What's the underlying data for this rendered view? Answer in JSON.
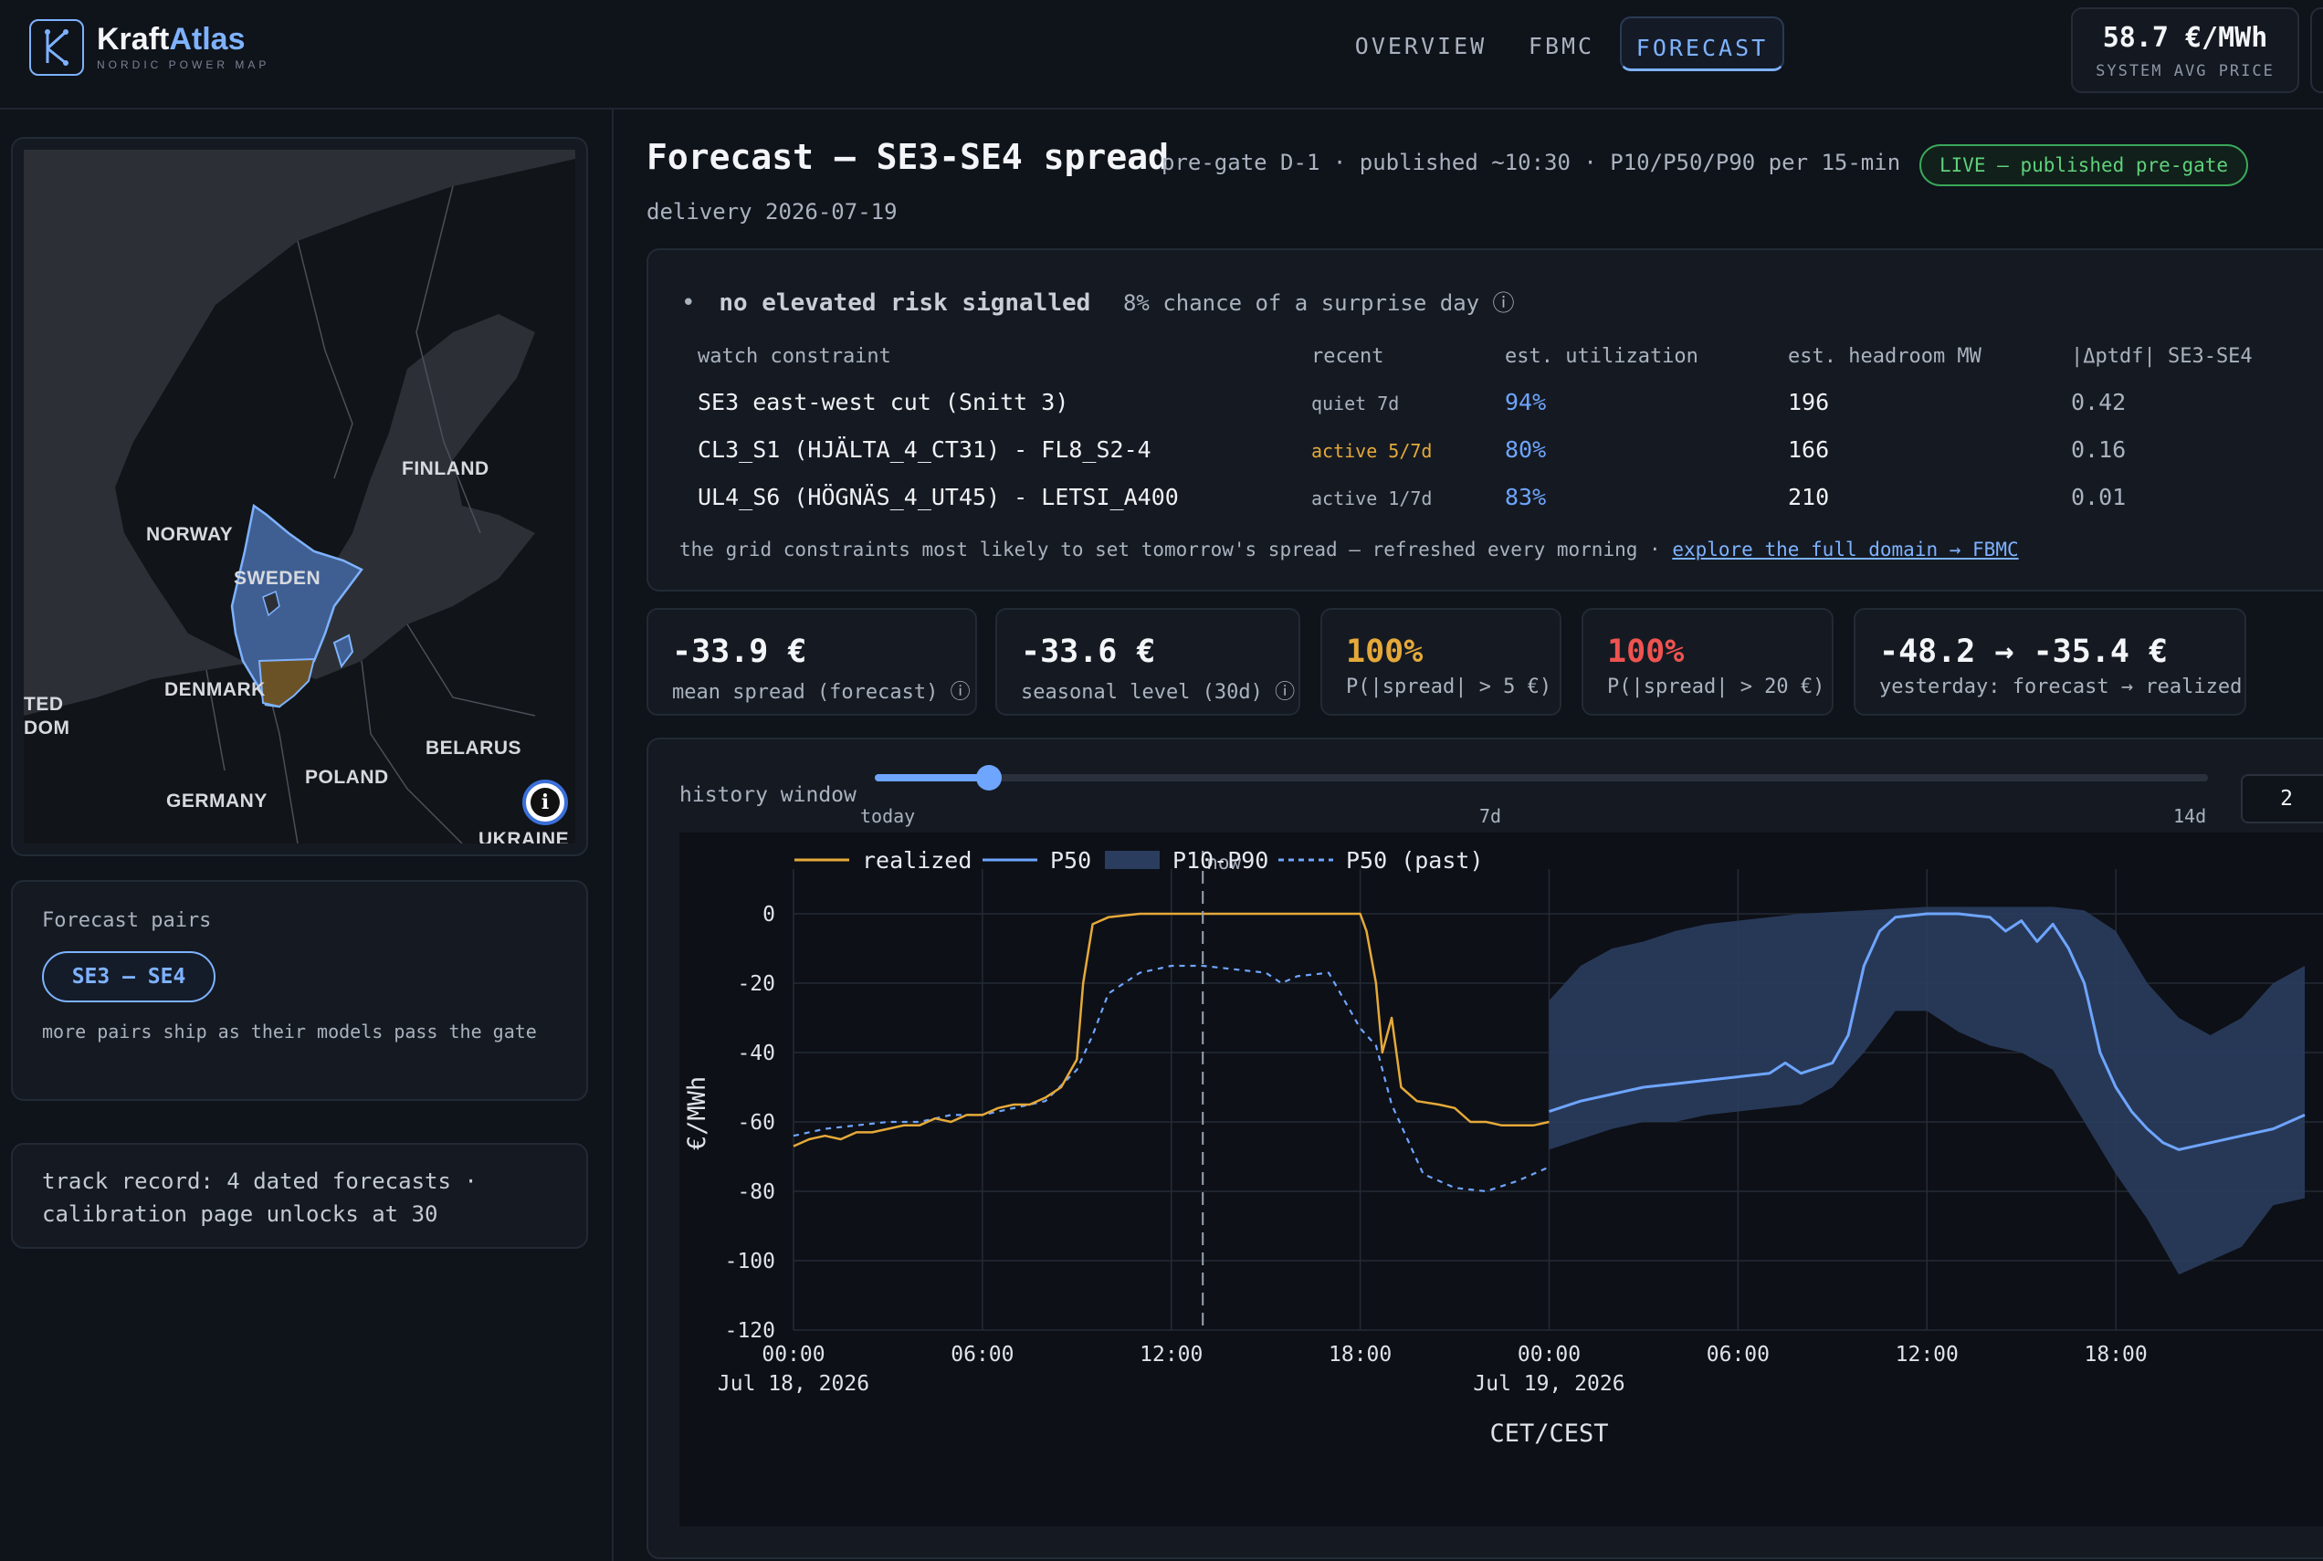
{
  "header": {
    "brand_first": "Kraft",
    "brand_second": "Atlas",
    "tagline": "NORDIC POWER MAP",
    "nav": [
      "OVERVIEW",
      "FBMC",
      "FORECAST"
    ],
    "active_tab": "FORECAST",
    "price_value": "58.7 €/MWh",
    "price_label": "SYSTEM AVG PRICE"
  },
  "map": {
    "labels": [
      "FINLAND",
      "NORWAY",
      "SWEDEN",
      "DENMARK",
      "BELARUS",
      "POLAND",
      "GERMANY",
      "UKRAINE",
      "TED",
      "DOM"
    ],
    "highlight_color": "#5b86d6",
    "se4_color": "#6b5226"
  },
  "pairs": {
    "title": "Forecast pairs",
    "chip": "SE3 – SE4",
    "note": "more pairs ship as their models pass the gate"
  },
  "track_record": "track record: 4 dated forecasts · calibration page unlocks at 30",
  "main": {
    "title": "Forecast — SE3-SE4 spread",
    "subtitle": "pre-gate D-1 · published ~10:30 · P10/P50/P90 per 15-min",
    "badge": "LIVE — published pre-gate",
    "delivery": "delivery 2026-07-19"
  },
  "risk": {
    "bullet": "•",
    "headline": "no elevated risk signalled",
    "chance": "8% chance of a surprise day ⓘ",
    "columns": [
      "watch constraint",
      "recent",
      "est. utilization",
      "est. headroom MW",
      "|Δptdf| SE3-SE4"
    ],
    "rows": [
      {
        "name": "SE3 east-west cut (Snitt 3)",
        "recent": "quiet 7d",
        "util": "94%",
        "headroom": "196",
        "ptdf": "0.42"
      },
      {
        "name": "CL3_S1 (HJÄLTA_4_CT31) - FL8_S2-4",
        "recent": "active 5/7d",
        "util": "80%",
        "headroom": "166",
        "ptdf": "0.16"
      },
      {
        "name": "UL4_S6 (HÖGNÄS_4_UT45) - LETSI_A400",
        "recent": "active 1/7d",
        "util": "83%",
        "headroom": "210",
        "ptdf": "0.01"
      }
    ],
    "note": "the grid constraints most likely to set tomorrow's spread — refreshed every morning · ",
    "link": "explore the full domain → FBMC"
  },
  "stats": [
    {
      "value": "-33.9 €",
      "label": "mean spread (forecast) ⓘ",
      "color": "#f3f5f8"
    },
    {
      "value": "-33.6 €",
      "label": "seasonal level (30d) ⓘ",
      "color": "#f3f5f8"
    },
    {
      "value": "100%",
      "label": "P(|spread| > 5 €)",
      "color": "#e5a93a"
    },
    {
      "value": "100%",
      "label": "P(|spread| > 20 €)",
      "color": "#ef5350"
    },
    {
      "value": "-48.2 → -35.4 €",
      "label": "yesterday: forecast → realized",
      "color": "#f3f5f8"
    }
  ],
  "history": {
    "label": "history window",
    "ticks": [
      "today",
      "7d",
      "14d"
    ],
    "value": "2",
    "slider_fraction": 0.0857
  },
  "chart_data": {
    "type": "line",
    "legend": [
      "realized",
      "P50",
      "P10-P90",
      "P50 (past)"
    ],
    "legend_position": "top-left",
    "xlabel": "CET/CEST",
    "ylabel": "€/MWh",
    "ylim": [
      -120,
      5
    ],
    "yticks": [
      0,
      -20,
      -40,
      -60,
      -80,
      -100,
      -120
    ],
    "yticks_labels": [
      "0",
      "-20",
      "-40",
      "-60",
      "-80",
      "-100",
      "-120"
    ],
    "x_range_hours": [
      0,
      48
    ],
    "xticks": [
      {
        "h": 0,
        "label": "00:00",
        "date": "Jul 18, 2026"
      },
      {
        "h": 6,
        "label": "06:00",
        "date": ""
      },
      {
        "h": 12,
        "label": "12:00",
        "date": ""
      },
      {
        "h": 18,
        "label": "18:00",
        "date": ""
      },
      {
        "h": 24,
        "label": "00:00",
        "date": "Jul 19, 2026"
      },
      {
        "h": 30,
        "label": "06:00",
        "date": ""
      },
      {
        "h": 36,
        "label": "12:00",
        "date": ""
      },
      {
        "h": 42,
        "label": "18:00",
        "date": ""
      }
    ],
    "now_hour": 13,
    "now_label": "now",
    "grid": true,
    "colors": {
      "realized": "#e5a93a",
      "p50": "#6ea5ff",
      "band": "#2a3d5e",
      "past": "#6ea5ff"
    },
    "series": [
      {
        "name": "realized",
        "points": [
          [
            0,
            -67
          ],
          [
            0.5,
            -65
          ],
          [
            1,
            -64
          ],
          [
            1.5,
            -65
          ],
          [
            2,
            -63
          ],
          [
            2.5,
            -63
          ],
          [
            3,
            -62
          ],
          [
            3.5,
            -61
          ],
          [
            4,
            -61
          ],
          [
            4.5,
            -59
          ],
          [
            5,
            -60
          ],
          [
            5.5,
            -58
          ],
          [
            6,
            -58
          ],
          [
            6.5,
            -56
          ],
          [
            7,
            -55
          ],
          [
            7.5,
            -55
          ],
          [
            8,
            -53
          ],
          [
            8.5,
            -50
          ],
          [
            9,
            -42
          ],
          [
            9.2,
            -20
          ],
          [
            9.5,
            -3
          ],
          [
            10,
            -1
          ],
          [
            11,
            0
          ],
          [
            12,
            0
          ],
          [
            13,
            0
          ],
          [
            14,
            0
          ],
          [
            15,
            0
          ],
          [
            16,
            0
          ],
          [
            17,
            0
          ],
          [
            18,
            0
          ],
          [
            18.2,
            -5
          ],
          [
            18.5,
            -20
          ],
          [
            18.7,
            -40
          ],
          [
            19,
            -30
          ],
          [
            19.3,
            -50
          ],
          [
            19.8,
            -54
          ],
          [
            20.5,
            -55
          ],
          [
            21,
            -56
          ],
          [
            21.5,
            -60
          ],
          [
            22,
            -60
          ],
          [
            22.5,
            -61
          ],
          [
            23,
            -61
          ],
          [
            23.5,
            -61
          ],
          [
            24,
            -60
          ]
        ]
      },
      {
        "name": "P50 (past)",
        "points": [
          [
            0,
            -64
          ],
          [
            1,
            -62
          ],
          [
            2,
            -61
          ],
          [
            3,
            -60
          ],
          [
            4,
            -60
          ],
          [
            5,
            -58
          ],
          [
            6,
            -58
          ],
          [
            7,
            -56
          ],
          [
            8,
            -54
          ],
          [
            9,
            -45
          ],
          [
            9.5,
            -35
          ],
          [
            10,
            -23
          ],
          [
            11,
            -17
          ],
          [
            12,
            -15
          ],
          [
            13,
            -15
          ],
          [
            14,
            -16
          ],
          [
            15,
            -17
          ],
          [
            15.5,
            -20
          ],
          [
            16,
            -18
          ],
          [
            17,
            -17
          ],
          [
            17.5,
            -25
          ],
          [
            18,
            -33
          ],
          [
            18.5,
            -38
          ],
          [
            19,
            -55
          ],
          [
            19.5,
            -65
          ],
          [
            20,
            -75
          ],
          [
            21,
            -79
          ],
          [
            22,
            -80
          ],
          [
            23,
            -77
          ],
          [
            24,
            -73
          ]
        ]
      },
      {
        "name": "P50",
        "points": [
          [
            24,
            -57
          ],
          [
            25,
            -54
          ],
          [
            26,
            -52
          ],
          [
            27,
            -50
          ],
          [
            28,
            -49
          ],
          [
            29,
            -48
          ],
          [
            30,
            -47
          ],
          [
            31,
            -46
          ],
          [
            31.5,
            -43
          ],
          [
            32,
            -46
          ],
          [
            33,
            -43
          ],
          [
            33.5,
            -35
          ],
          [
            34,
            -15
          ],
          [
            34.5,
            -5
          ],
          [
            35,
            -1
          ],
          [
            36,
            0
          ],
          [
            37,
            0
          ],
          [
            38,
            -1
          ],
          [
            38.5,
            -5
          ],
          [
            39,
            -2
          ],
          [
            39.5,
            -8
          ],
          [
            40,
            -3
          ],
          [
            40.5,
            -10
          ],
          [
            41,
            -20
          ],
          [
            41.5,
            -40
          ],
          [
            42,
            -50
          ],
          [
            42.5,
            -57
          ],
          [
            43,
            -62
          ],
          [
            43.5,
            -66
          ],
          [
            44,
            -68
          ],
          [
            45,
            -66
          ],
          [
            46,
            -64
          ],
          [
            47,
            -62
          ],
          [
            47.5,
            -60
          ],
          [
            48,
            -58
          ]
        ]
      },
      {
        "name": "P10-P90",
        "upper": [
          [
            24,
            -25
          ],
          [
            25,
            -15
          ],
          [
            26,
            -10
          ],
          [
            27,
            -8
          ],
          [
            28,
            -5
          ],
          [
            29,
            -3
          ],
          [
            30,
            -2
          ],
          [
            31,
            -1
          ],
          [
            32,
            0
          ],
          [
            34,
            1
          ],
          [
            36,
            2
          ],
          [
            38,
            2
          ],
          [
            40,
            2
          ],
          [
            41,
            1
          ],
          [
            42,
            -5
          ],
          [
            43,
            -20
          ],
          [
            44,
            -30
          ],
          [
            45,
            -35
          ],
          [
            46,
            -30
          ],
          [
            47,
            -20
          ],
          [
            48,
            -15
          ]
        ],
        "lower": [
          [
            48,
            -82
          ],
          [
            47,
            -84
          ],
          [
            46,
            -96
          ],
          [
            45,
            -100
          ],
          [
            44,
            -104
          ],
          [
            43,
            -88
          ],
          [
            42,
            -75
          ],
          [
            41,
            -60
          ],
          [
            40,
            -45
          ],
          [
            39,
            -40
          ],
          [
            38,
            -38
          ],
          [
            37,
            -34
          ],
          [
            36,
            -28
          ],
          [
            35,
            -28
          ],
          [
            34,
            -40
          ],
          [
            33,
            -50
          ],
          [
            32,
            -55
          ],
          [
            31,
            -56
          ],
          [
            30,
            -57
          ],
          [
            29,
            -58
          ],
          [
            28,
            -60
          ],
          [
            27,
            -60
          ],
          [
            26,
            -62
          ],
          [
            25,
            -65
          ],
          [
            24,
            -68
          ]
        ]
      }
    ]
  }
}
